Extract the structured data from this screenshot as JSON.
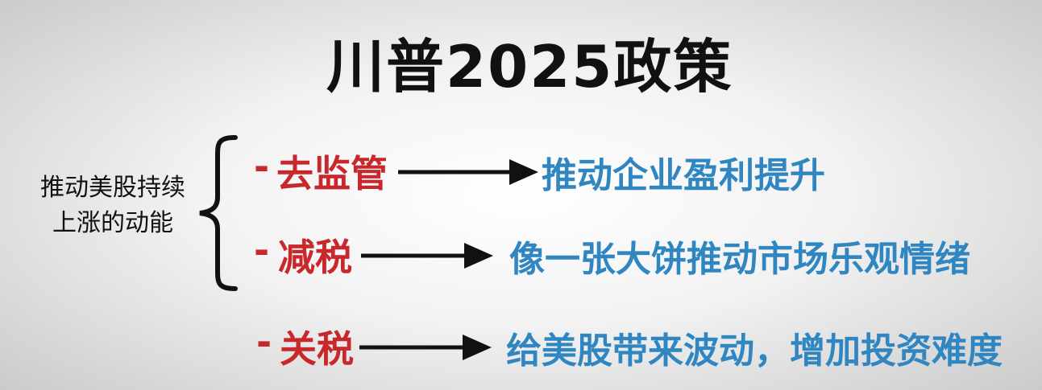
{
  "title": "川普2025政策",
  "context": {
    "line1": "推动美股持续",
    "line2": "上涨的动能"
  },
  "colors": {
    "policy": "#c8272b",
    "effect": "#2f86c1",
    "text": "#111111"
  },
  "items": [
    {
      "dash": "-",
      "policy": "去监管",
      "effect": "推动企业盈利提升"
    },
    {
      "dash": "-",
      "policy": "减税",
      "effect": "像一张大饼推动市场乐观情绪"
    },
    {
      "dash": "-",
      "policy": "关税",
      "effect": "给美股带来波动，增加投资难度"
    }
  ]
}
